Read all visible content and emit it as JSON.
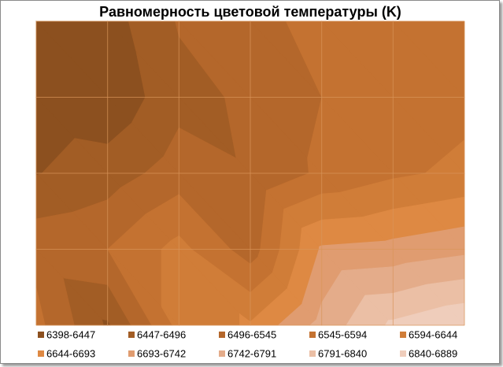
{
  "chart_data": {
    "type": "contour",
    "title": "Равномерность цветовой температуры (K)",
    "z": [
      [
        6430,
        6425,
        6500,
        6530,
        6560,
        6565,
        6575
      ],
      [
        6420,
        6410,
        6480,
        6505,
        6545,
        6560,
        6580
      ],
      [
        6445,
        6470,
        6520,
        6500,
        6555,
        6585,
        6605
      ],
      [
        6530,
        6545,
        6610,
        6520,
        6700,
        6710,
        6730
      ],
      [
        6560,
        6440,
        6610,
        6650,
        6760,
        6850,
        6885
      ]
    ],
    "bands": [
      {
        "label": "6398-6447",
        "from": 6398,
        "to": 6447,
        "color": "#8c501f"
      },
      {
        "label": "6447-6496",
        "from": 6447,
        "to": 6496,
        "color": "#a25d25"
      },
      {
        "label": "6496-6545",
        "from": 6496,
        "to": 6545,
        "color": "#b4672b"
      },
      {
        "label": "6545-6594",
        "from": 6545,
        "to": 6594,
        "color": "#c47231"
      },
      {
        "label": "6594-6644",
        "from": 6594,
        "to": 6644,
        "color": "#d07d38"
      },
      {
        "label": "6644-6693",
        "from": 6644,
        "to": 6693,
        "color": "#de8943"
      },
      {
        "label": "6693-6742",
        "from": 6693,
        "to": 6742,
        "color": "#e09c70"
      },
      {
        "label": "6742-6791",
        "from": 6742,
        "to": 6791,
        "color": "#e4ac8a"
      },
      {
        "label": "6791-6840",
        "from": 6791,
        "to": 6840,
        "color": "#ebbfa5"
      },
      {
        "label": "6840-6889",
        "from": 6840,
        "to": 6889,
        "color": "#efcdbb"
      }
    ]
  }
}
